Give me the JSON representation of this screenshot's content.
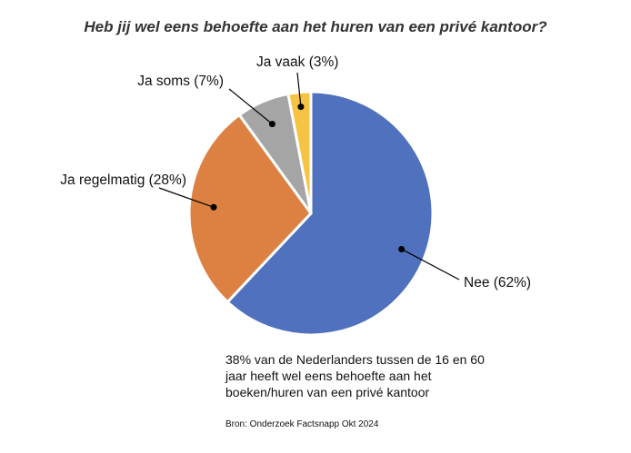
{
  "chart_data": {
    "type": "pie",
    "title": "Heb jij wel eens behoefte aan het huren van een privé kantoor?",
    "slices": [
      {
        "label": "Nee (62%)",
        "value": 62,
        "color": "#4f71be"
      },
      {
        "label": "Ja regelmatig (28%)",
        "value": 28,
        "color": "#dd8142"
      },
      {
        "label": "Ja soms (7%)",
        "value": 7,
        "color": "#a5a5a5"
      },
      {
        "label": "Ja vaak (3%)",
        "value": 3,
        "color": "#f6c443"
      }
    ]
  },
  "note": "38% van de Nederlanders tussen de 16 en 60 jaar heeft wel eens behoefte aan het boeken/huren van een privé kantoor",
  "source": "Bron: Onderzoek Factsnapp Okt 2024"
}
